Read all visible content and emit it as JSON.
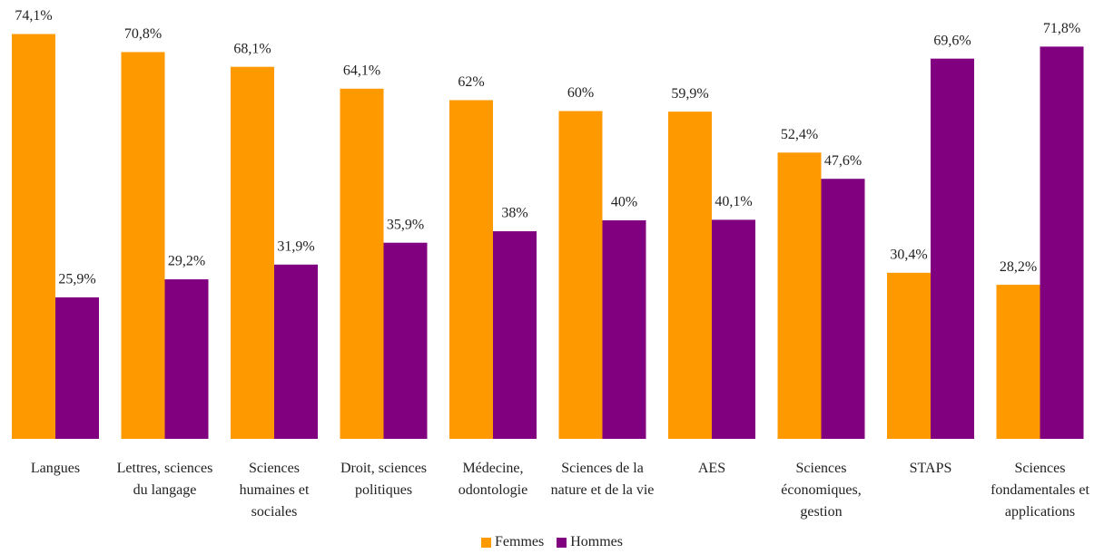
{
  "chart_data": {
    "type": "bar",
    "categories": [
      "Langues",
      "Lettres, sciences du langage",
      "Sciences humaines et sociales",
      "Droit, sciences politiques",
      "Médecine, odontologie",
      "Sciences de la nature et de la vie",
      "AES",
      "Sciences économiques, gestion",
      "STAPS",
      "Sciences fondamentales et applications"
    ],
    "series": [
      {
        "name": "Femmes",
        "color": "#ff9900",
        "values": [
          74.1,
          70.8,
          68.1,
          64.1,
          62,
          60,
          59.9,
          52.4,
          30.4,
          28.2
        ],
        "value_labels": [
          "74,1%",
          "70,8%",
          "68,1%",
          "64,1%",
          "62%",
          "60%",
          "59,9%",
          "52,4%",
          "30,4%",
          "28,2%"
        ]
      },
      {
        "name": "Hommes",
        "color": "#800080",
        "values": [
          25.9,
          29.2,
          31.9,
          35.9,
          38,
          40,
          40.1,
          47.6,
          69.6,
          71.8
        ],
        "value_labels": [
          "25,9%",
          "29,2%",
          "31,9%",
          "35,9%",
          "38%",
          "40%",
          "40,1%",
          "47,6%",
          "69,6%",
          "71,8%"
        ]
      }
    ],
    "ylim": [
      0,
      80
    ]
  }
}
